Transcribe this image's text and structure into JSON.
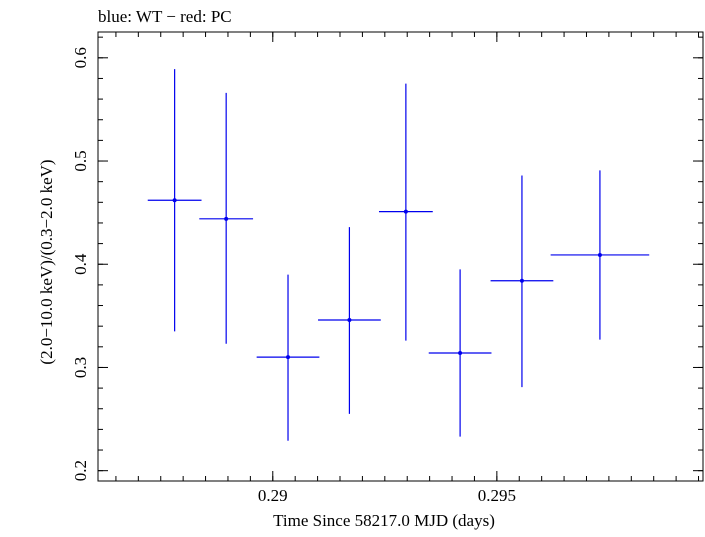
{
  "chart_data": {
    "type": "scatter",
    "title": "blue: WT − red: PC",
    "xlabel": "Time Since 58217.0 MJD (days)",
    "ylabel": "(2.0−10.0 keV)/(0.3−2.0 keV)",
    "xlim": [
      0.2861,
      0.2996
    ],
    "ylim": [
      0.19,
      0.625
    ],
    "x_ticks": [
      0.29,
      0.295
    ],
    "x_tick_labels": [
      "0.29",
      "0.295"
    ],
    "y_ticks": [
      0.2,
      0.3,
      0.4,
      0.5,
      0.6
    ],
    "y_tick_labels": [
      "0.2",
      "0.3",
      "0.4",
      "0.5",
      "0.6"
    ],
    "grid": false,
    "series": [
      {
        "color": "#0000ee",
        "points": [
          {
            "x": 0.28781,
            "y": 0.462,
            "xerr": 0.0006,
            "ylow": 0.335,
            "yhigh": 0.589
          },
          {
            "x": 0.28896,
            "y": 0.444,
            "xerr": 0.0006,
            "ylow": 0.323,
            "yhigh": 0.566
          },
          {
            "x": 0.29034,
            "y": 0.31,
            "xerr": 0.0007,
            "ylow": 0.229,
            "yhigh": 0.39
          },
          {
            "x": 0.29171,
            "y": 0.346,
            "xerr": 0.0007,
            "ylow": 0.255,
            "yhigh": 0.436
          },
          {
            "x": 0.29297,
            "y": 0.451,
            "xerr": 0.0006,
            "ylow": 0.326,
            "yhigh": 0.575
          },
          {
            "x": 0.29418,
            "y": 0.314,
            "xerr": 0.0007,
            "ylow": 0.233,
            "yhigh": 0.395
          },
          {
            "x": 0.29556,
            "y": 0.384,
            "xerr": 0.0007,
            "ylow": 0.281,
            "yhigh": 0.486
          },
          {
            "x": 0.2973,
            "y": 0.409,
            "xerr": 0.0011,
            "ylow": 0.327,
            "yhigh": 0.491
          }
        ]
      }
    ]
  }
}
